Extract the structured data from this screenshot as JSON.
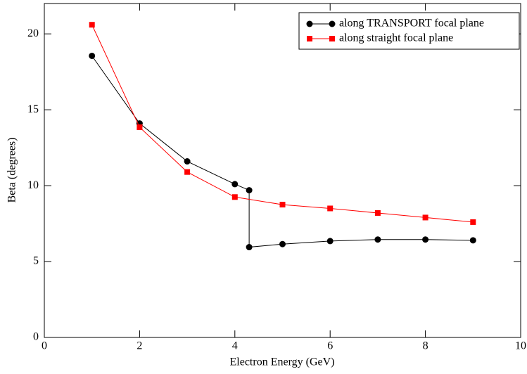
{
  "chart_data": {
    "type": "line",
    "xlabel": "Electron Energy (GeV)",
    "ylabel": "Beta (degrees)",
    "xlim": [
      0,
      10
    ],
    "xticks": [
      0,
      2,
      4,
      6,
      8,
      10
    ],
    "ylim": [
      0,
      22
    ],
    "yticks": [
      0,
      5,
      10,
      15,
      20
    ],
    "legend": "upper right",
    "series": [
      {
        "name": "along TRANSPORT focal plane",
        "color": "#000000",
        "marker": "circle",
        "x": [
          1,
          2,
          3,
          4,
          4.3,
          4.3,
          5,
          6,
          7,
          8,
          9
        ],
        "values": [
          18.55,
          14.1,
          11.6,
          10.1,
          9.7,
          5.95,
          6.15,
          6.35,
          6.45,
          6.45,
          6.4
        ]
      },
      {
        "name": "along straight focal plane",
        "color": "#ff0000",
        "marker": "square",
        "x": [
          1,
          2,
          3,
          4,
          5,
          6,
          7,
          8,
          9
        ],
        "values": [
          20.6,
          13.85,
          10.9,
          9.25,
          8.75,
          8.5,
          8.2,
          7.9,
          7.6
        ]
      }
    ]
  }
}
